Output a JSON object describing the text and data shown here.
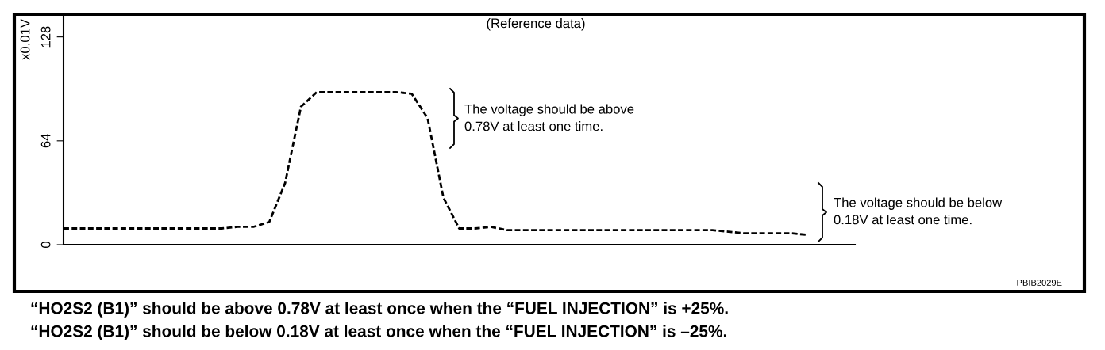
{
  "chart_data": {
    "type": "line",
    "title": "(Reference data)",
    "ylabel": "x0.01V",
    "categories": [
      null,
      null,
      null,
      null,
      null,
      null,
      null,
      null,
      null,
      null,
      null,
      null,
      null,
      null,
      null,
      null,
      null,
      null,
      null,
      null,
      null,
      null,
      null,
      null,
      null,
      null,
      null,
      null,
      null,
      null,
      null,
      null,
      null,
      null,
      null,
      null,
      null,
      null,
      null,
      null,
      null,
      null,
      null,
      null,
      null,
      null,
      null,
      null,
      null,
      null,
      null
    ],
    "series": [
      {
        "color": "#000000",
        "values": [
          10,
          10,
          10,
          10,
          10,
          10,
          10,
          10,
          10,
          10,
          10,
          11,
          11,
          14,
          38,
          85,
          94,
          94,
          94,
          94,
          94,
          94,
          93,
          78,
          29,
          10,
          10,
          11,
          9,
          9,
          9,
          9,
          9,
          9,
          9,
          9,
          9,
          9,
          9,
          9,
          9,
          9,
          8,
          7,
          7,
          7,
          7,
          6,
          null,
          null,
          null
        ]
      }
    ],
    "ylim": [
      0,
      141
    ],
    "yticks": [
      0,
      64,
      128
    ],
    "grid": false,
    "legend": false,
    "marker": "none",
    "line_style": "dashed",
    "tick_labels": "y",
    "annotations": [
      "The voltage should be above\n0.78V at least one time.",
      "The voltage should be below\n0.18V at least one time.",
      "PBIB2029E",
      "“HO2S2 (B1)” should be above 0.78V at least once when the “FUEL INJECTION” is +25%.",
      "“HO2S2 (B1)” should be below 0.18V at least once when the “FUEL INJECTION” is –25%."
    ]
  }
}
